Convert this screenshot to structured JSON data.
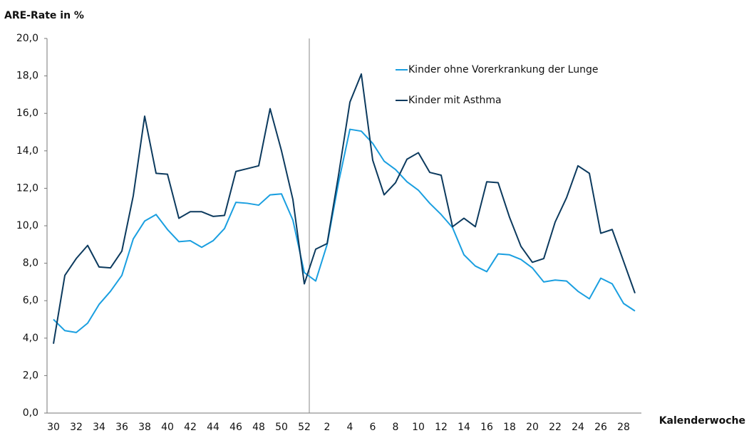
{
  "chart_data": {
    "type": "line",
    "title": "ARE-Rate in %",
    "x_label": "Kalenderwoche",
    "categories": [
      "30",
      null,
      "32",
      null,
      "34",
      null,
      "36",
      null,
      "38",
      null,
      "40",
      null,
      "42",
      null,
      "44",
      null,
      "46",
      null,
      "48",
      null,
      "50",
      null,
      "52",
      null,
      "2",
      null,
      "4",
      null,
      "6",
      null,
      "8",
      null,
      "10",
      null,
      "12",
      null,
      "14",
      null,
      "16",
      null,
      "18",
      null,
      "20",
      null,
      "22",
      null,
      "24",
      null,
      "26",
      null,
      "28",
      null
    ],
    "series": [
      {
        "name": "Kinder ohne Vorerkrankung der Lunge",
        "color": "#1a9fe0",
        "values": [
          5.0,
          4.4,
          4.3,
          4.8,
          5.8,
          6.5,
          7.35,
          9.3,
          10.25,
          10.6,
          9.8,
          9.15,
          9.2,
          8.85,
          9.2,
          9.85,
          11.25,
          11.2,
          11.1,
          11.65,
          11.7,
          10.3,
          7.5,
          7.05,
          9.0,
          12.3,
          15.15,
          15.05,
          14.4,
          13.45,
          13.0,
          12.35,
          11.9,
          11.2,
          10.6,
          9.9,
          8.45,
          7.85,
          7.55,
          8.5,
          8.45,
          8.2,
          7.75,
          7.0,
          7.1,
          7.05,
          6.5,
          6.1,
          7.2,
          6.9,
          5.85,
          5.45
        ]
      },
      {
        "name": "Kinder mit Asthma",
        "color": "#0c3a5e",
        "values": [
          3.7,
          7.35,
          8.25,
          8.95,
          7.8,
          7.75,
          8.65,
          11.6,
          15.85,
          12.8,
          12.75,
          10.4,
          10.75,
          10.75,
          10.5,
          10.55,
          12.9,
          13.05,
          13.2,
          16.25,
          14.0,
          11.4,
          6.9,
          8.75,
          9.05,
          12.7,
          16.6,
          18.1,
          13.5,
          11.65,
          12.3,
          13.55,
          13.9,
          12.85,
          12.7,
          9.95,
          10.4,
          9.95,
          12.35,
          12.3,
          10.45,
          8.9,
          8.05,
          8.25,
          10.2,
          11.5,
          13.2,
          12.8,
          9.6,
          9.8,
          8.1,
          6.4
        ]
      }
    ],
    "ylim": [
      0,
      20
    ],
    "yticks": [
      {
        "value": 0,
        "label": "0,0"
      },
      {
        "value": 2,
        "label": "2,0"
      },
      {
        "value": 4,
        "label": "4,0"
      },
      {
        "value": 6,
        "label": "6,0"
      },
      {
        "value": 8,
        "label": "8,0"
      },
      {
        "value": 10,
        "label": "10,0"
      },
      {
        "value": 12,
        "label": "12,0"
      },
      {
        "value": 14,
        "label": "14,0"
      },
      {
        "value": 16,
        "label": "16,0"
      },
      {
        "value": 18,
        "label": "18,0"
      },
      {
        "value": 20,
        "label": "20,0"
      }
    ],
    "grid": false
  }
}
